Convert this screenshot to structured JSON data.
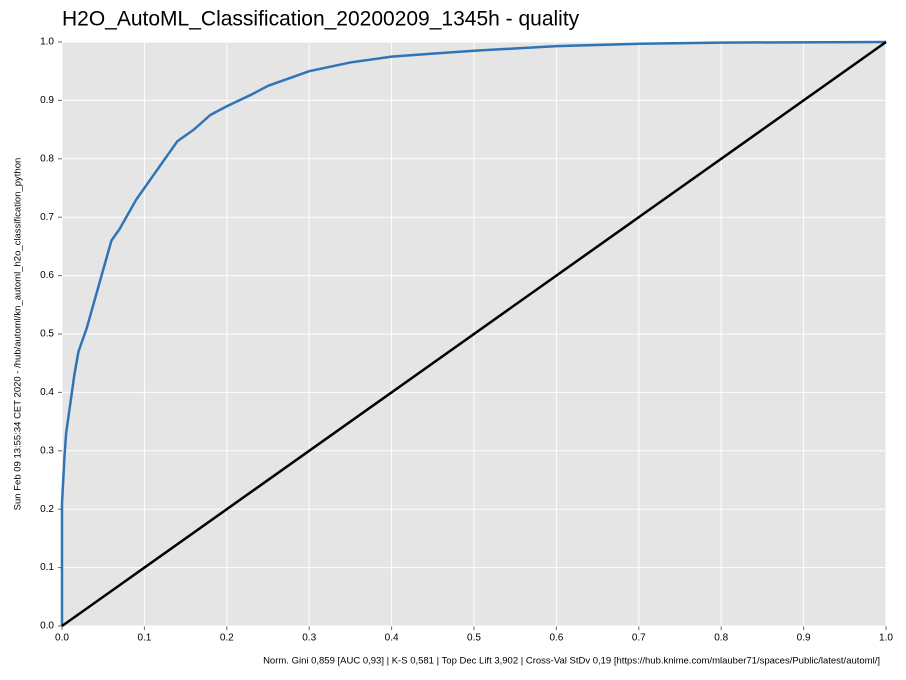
{
  "chart_data": {
    "type": "line",
    "title": "H2O_AutoML_Classification_20200209_1345h - quality",
    "y_label": "Sun Feb 09 13:55:34 CET 2020 - /hub/automl/kn_automl_h2o_classification_python",
    "caption": "Norm. Gini 0,859 [AUC 0,93] | K-S 0,581 | Top Dec Lift 3,902 | Cross-Val StDv 0,19 [https://hub.knime.com/mlauber71/spaces/Public/latest/automl/]",
    "xlim": [
      0,
      1
    ],
    "ylim": [
      0,
      1
    ],
    "xticks": [
      {
        "value": 0,
        "label": "0.0"
      },
      0.1,
      0.2,
      0.3,
      0.4,
      0.5,
      0.6,
      0.7,
      0.8,
      0.9,
      {
        "value": 1,
        "label": "1.0"
      }
    ],
    "yticks": [
      {
        "value": 0,
        "label": "0.0"
      },
      0.1,
      0.2,
      0.3,
      0.4,
      0.5,
      0.6,
      0.7,
      0.8,
      0.9,
      {
        "value": 1,
        "label": "1.0"
      }
    ],
    "grid": true,
    "series": [
      {
        "color": "#2f74b5",
        "x": [
          0,
          0,
          0.003,
          0.005,
          0.01,
          0.015,
          0.02,
          0.03,
          0.04,
          0.05,
          0.06,
          0.07,
          0.08,
          0.09,
          0.1,
          0.11,
          0.12,
          0.13,
          0.14,
          0.16,
          0.18,
          0.2,
          0.23,
          0.25,
          0.28,
          0.3,
          0.35,
          0.4,
          0.45,
          0.5,
          0.6,
          0.7,
          0.8,
          1
        ],
        "values": [
          0,
          0.21,
          0.29,
          0.33,
          0.38,
          0.43,
          0.47,
          0.51,
          0.56,
          0.61,
          0.66,
          0.68,
          0.705,
          0.73,
          0.75,
          0.77,
          0.79,
          0.81,
          0.83,
          0.85,
          0.875,
          0.89,
          0.91,
          0.925,
          0.94,
          0.95,
          0.965,
          0.975,
          0.98,
          0.985,
          0.993,
          0.997,
          0.999,
          1
        ]
      },
      {
        "color": "#000000",
        "x": [
          0,
          1
        ],
        "values": [
          0,
          1
        ]
      }
    ]
  }
}
